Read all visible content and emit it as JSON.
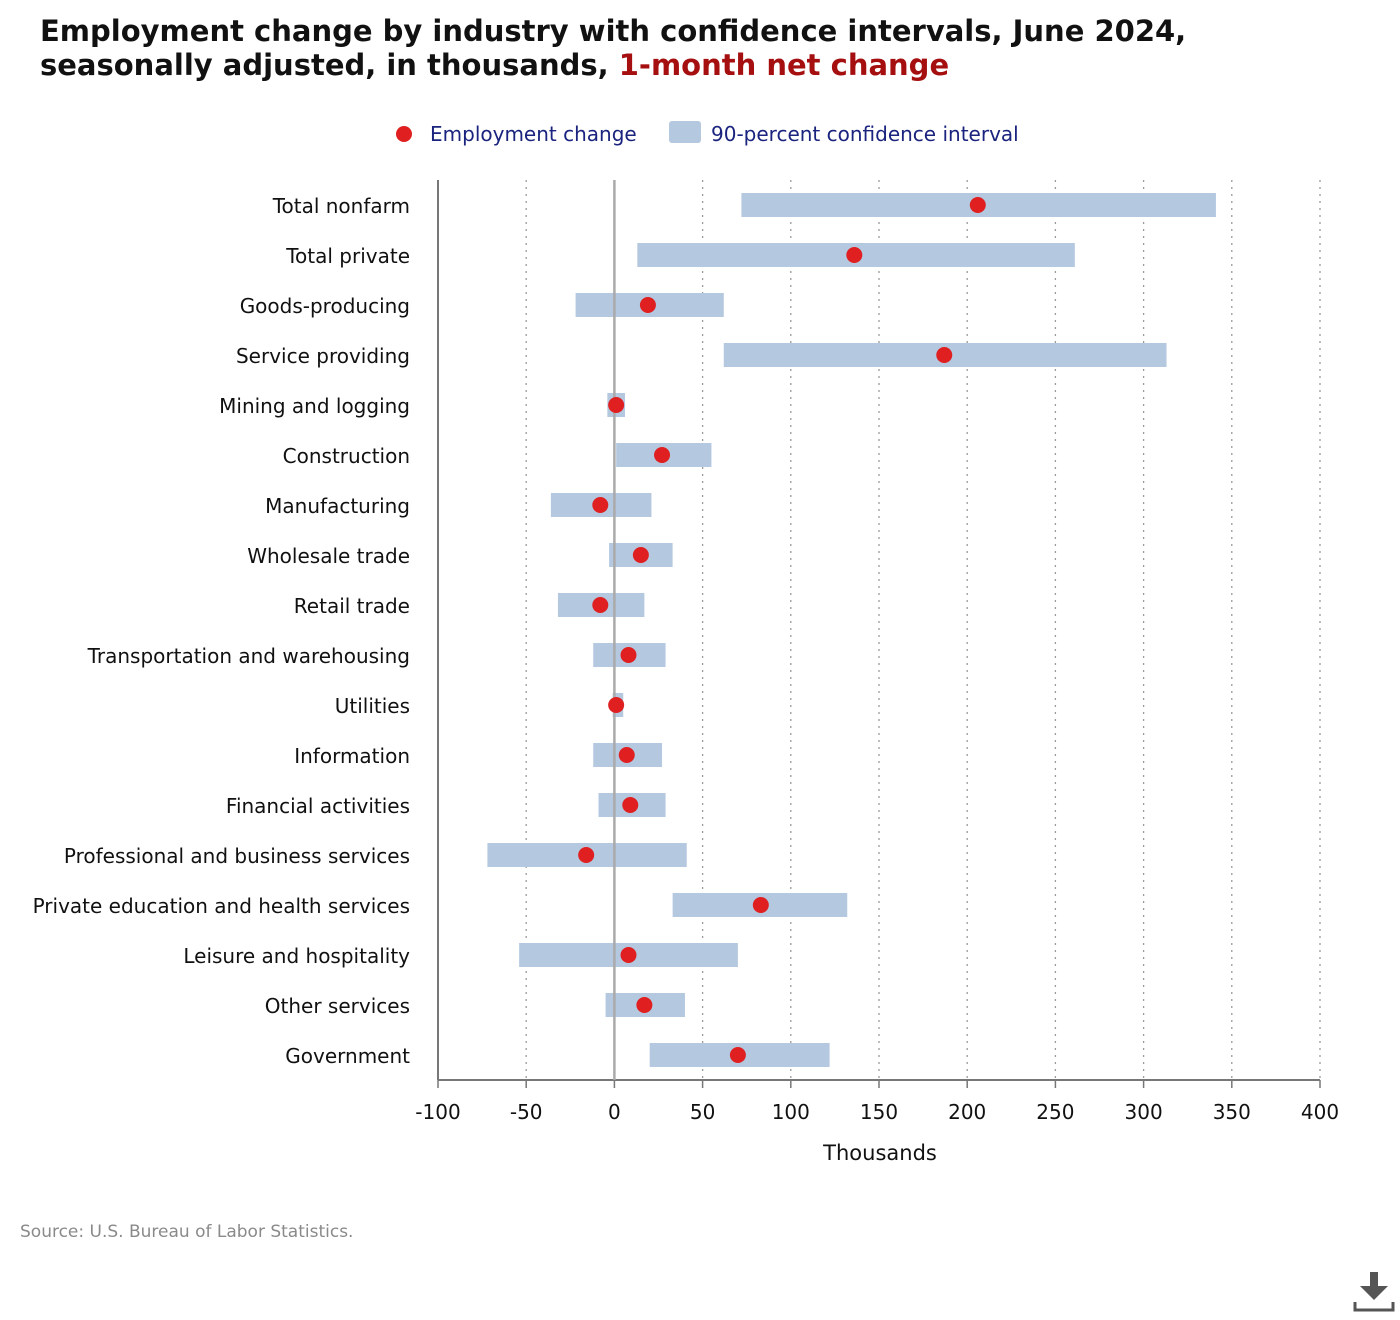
{
  "title": {
    "main": "Employment change by industry with confidence intervals, June 2024, seasonally adjusted, in thousands,",
    "highlight": "1-month net change"
  },
  "legend": {
    "point_label": "Employment change",
    "interval_label": "90-percent confidence interval"
  },
  "source": "Source: U.S. Bureau of Labor Statistics.",
  "colors": {
    "point": "#e02020",
    "interval": "#b4c8e0",
    "legend_text": "#1a237e",
    "highlight": "#a50f0f"
  },
  "download_icon": "download-icon",
  "chart_data": {
    "type": "scatter",
    "xlabel": "Thousands",
    "xlim": [
      -100,
      400
    ],
    "xticks": [
      -100,
      -50,
      0,
      50,
      100,
      150,
      200,
      250,
      300,
      350,
      400
    ],
    "grid": "vertical dotted",
    "legend_position": "top",
    "categories": [
      "Total nonfarm",
      "Total private",
      "Goods-producing",
      "Service providing",
      "Mining and logging",
      "Construction",
      "Manufacturing",
      "Wholesale trade",
      "Retail trade",
      "Transportation and warehousing",
      "Utilities",
      "Information",
      "Financial activities",
      "Professional and business services",
      "Private education and health services",
      "Leisure and hospitality",
      "Other services",
      "Government"
    ],
    "series": [
      {
        "name": "Employment change",
        "values": [
          206,
          136,
          19,
          187,
          1,
          27,
          -8,
          15,
          -8,
          8,
          1,
          7,
          9,
          -16,
          83,
          8,
          17,
          70
        ]
      },
      {
        "name": "90-percent confidence interval",
        "low": [
          72,
          13,
          -22,
          62,
          -4,
          1,
          -36,
          -3,
          -32,
          -12,
          -1,
          -12,
          -9,
          -72,
          33,
          -54,
          -5,
          20
        ],
        "high": [
          341,
          261,
          62,
          313,
          6,
          55,
          21,
          33,
          17,
          29,
          5,
          27,
          29,
          41,
          132,
          70,
          40,
          122
        ]
      }
    ]
  }
}
